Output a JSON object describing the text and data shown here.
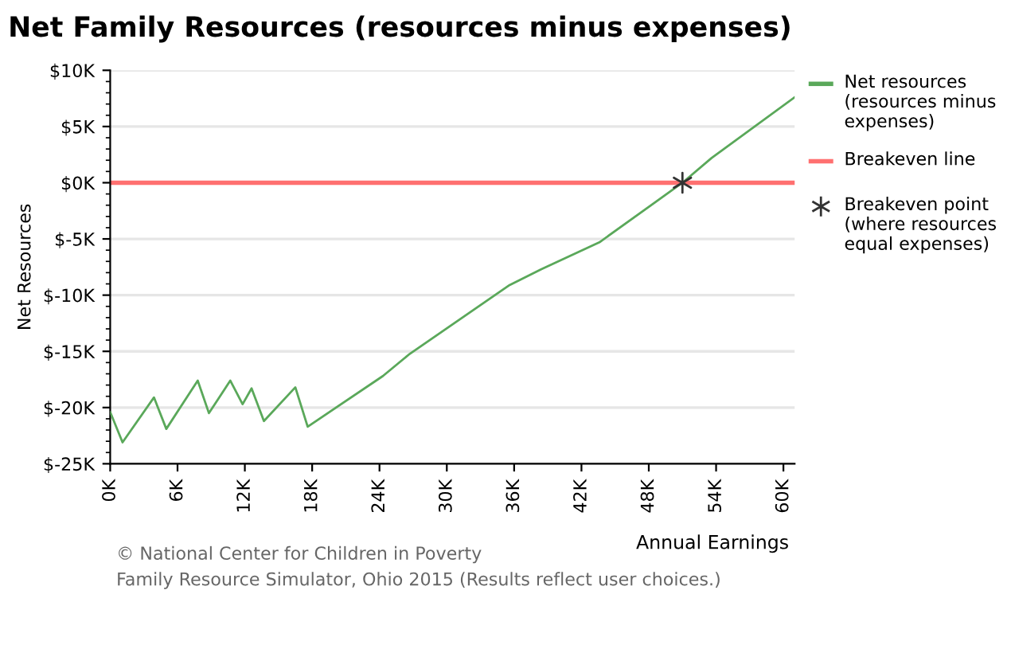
{
  "chart_data": {
    "type": "line",
    "title": "Net Family Resources (resources minus expenses)",
    "xlabel": "Annual Earnings",
    "ylabel": "Net Resources",
    "xlim": [
      0,
      61
    ],
    "ylim": [
      -25,
      10
    ],
    "xticks": [
      {
        "value": 0,
        "label": "0K"
      },
      {
        "value": 6,
        "label": "6K"
      },
      {
        "value": 12,
        "label": "12K"
      },
      {
        "value": 18,
        "label": "18K"
      },
      {
        "value": 24,
        "label": "24K"
      },
      {
        "value": 30,
        "label": "30K"
      },
      {
        "value": 36,
        "label": "36K"
      },
      {
        "value": 42,
        "label": "42K"
      },
      {
        "value": 48,
        "label": "48K"
      },
      {
        "value": 54,
        "label": "54K"
      },
      {
        "value": 60,
        "label": "60K"
      }
    ],
    "yticks": [
      {
        "value": 10,
        "label": "$10K"
      },
      {
        "value": 5,
        "label": "$5K"
      },
      {
        "value": 0,
        "label": "$0K"
      },
      {
        "value": -5,
        "label": "$-5K"
      },
      {
        "value": -10,
        "label": "$-10K"
      },
      {
        "value": -15,
        "label": "$-15K"
      },
      {
        "value": -20,
        "label": "$-20K"
      },
      {
        "value": -25,
        "label": "$-25K"
      }
    ],
    "series": [
      {
        "name": "Net resources (resources minus expenses)",
        "color": "#5aa85a",
        "marker": "none",
        "line_style": "solid",
        "x": [
          0,
          1.1,
          3.9,
          5.0,
          7.8,
          8.8,
          10.7,
          11.8,
          12.6,
          13.7,
          16.5,
          17.6,
          24.3,
          26.6,
          35.6,
          38.4,
          43.6,
          51.0,
          53.6,
          61.0
        ],
        "values": [
          -20.4,
          -23.1,
          -19.1,
          -21.9,
          -17.6,
          -20.5,
          -17.6,
          -19.7,
          -18.3,
          -21.2,
          -18.2,
          -21.7,
          -17.2,
          -15.3,
          -9.1,
          -7.7,
          -5.3,
          0,
          2.2,
          7.6
        ]
      },
      {
        "name": "Breakeven point (where resources equal expenses)",
        "type": "scatter",
        "color": "#333333",
        "marker": "cross",
        "x": [
          51.0
        ],
        "values": [
          0
        ]
      }
    ],
    "ref_lines": [
      {
        "axis": "y",
        "value": 0,
        "label": "Breakeven line",
        "color": "#ff7070",
        "line_style": "solid"
      }
    ],
    "grid": "y",
    "legend": "right",
    "annotations": [
      "© National Center for Children in Poverty",
      "Family Resource Simulator, Ohio 2015 (Results reflect user choices.)"
    ]
  }
}
